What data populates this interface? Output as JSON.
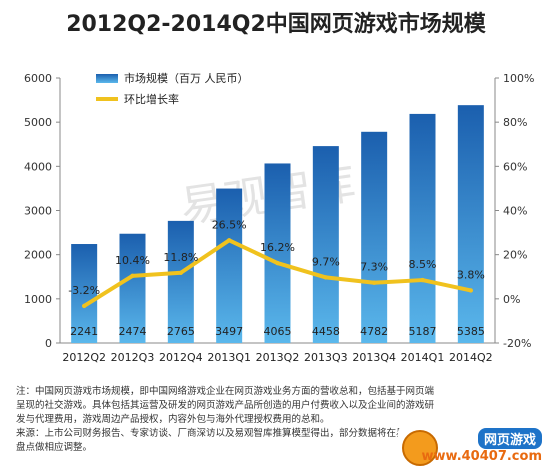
{
  "chart_data": {
    "type": "bar",
    "title": "2012Q2-2014Q2中国网页游戏市场规模",
    "categories": [
      "2012Q2",
      "2012Q3",
      "2012Q4",
      "2013Q1",
      "2013Q2",
      "2013Q3",
      "2013Q4",
      "2014Q1",
      "2014Q2"
    ],
    "series": [
      {
        "name": "市场规模（百万 人民币）",
        "type": "bar",
        "axis": "left",
        "values": [
          2241,
          2474,
          2765,
          3497,
          4065,
          4458,
          4782,
          5187,
          5385
        ]
      },
      {
        "name": "环比增长率",
        "type": "line",
        "axis": "right",
        "values": [
          -3.2,
          10.4,
          11.8,
          26.5,
          16.2,
          9.7,
          7.3,
          8.5,
          3.8
        ]
      }
    ],
    "bar_labels": [
      "2241",
      "2474",
      "2765",
      "3497",
      "4065",
      "4458",
      "4782",
      "5187",
      "5385"
    ],
    "line_labels": [
      "-3.2%",
      "10.4%",
      "11.8%",
      "26.5%",
      "16.2%",
      "9.7%",
      "7.3%",
      "8.5%",
      "3.8%"
    ],
    "y_left": {
      "min": 0,
      "max": 6000,
      "ticks": [
        "0",
        "1000",
        "2000",
        "3000",
        "4000",
        "5000",
        "6000"
      ]
    },
    "y_right": {
      "min": -20,
      "max": 100,
      "ticks": [
        "-20%",
        "0%",
        "20%",
        "40%",
        "60%",
        "80%",
        "100%"
      ]
    },
    "legend_position": "top-left",
    "grid": false,
    "colors": {
      "bar_top": "#1b5fae",
      "bar_bottom": "#5bb8ec",
      "line": "#f0c21e",
      "axis": "#888888"
    }
  },
  "notes": {
    "line1": "注：中国网页游戏市场规模，即中国网络游戏企业在网页游戏业务方面的营收总和，包括基于网页端",
    "line2": "呈现的社交游戏。具体包括其运营及研发的网页游戏产品所创造的用户付费收入以及企业间的游戏研",
    "line3": "发与代理费用，游戏周边产品授权，内容外包与海外代理授权费用的总和。",
    "line4": "来源：上市公司财务报告、专家访谈、厂商深访以及易观智库推算模型得出，部分数据将在易观",
    "line5": "盘点做相应调整。"
  },
  "watermark": "易观智库",
  "logo": {
    "top_text": "网页游戏",
    "bottom_text": "www.40407.com"
  }
}
